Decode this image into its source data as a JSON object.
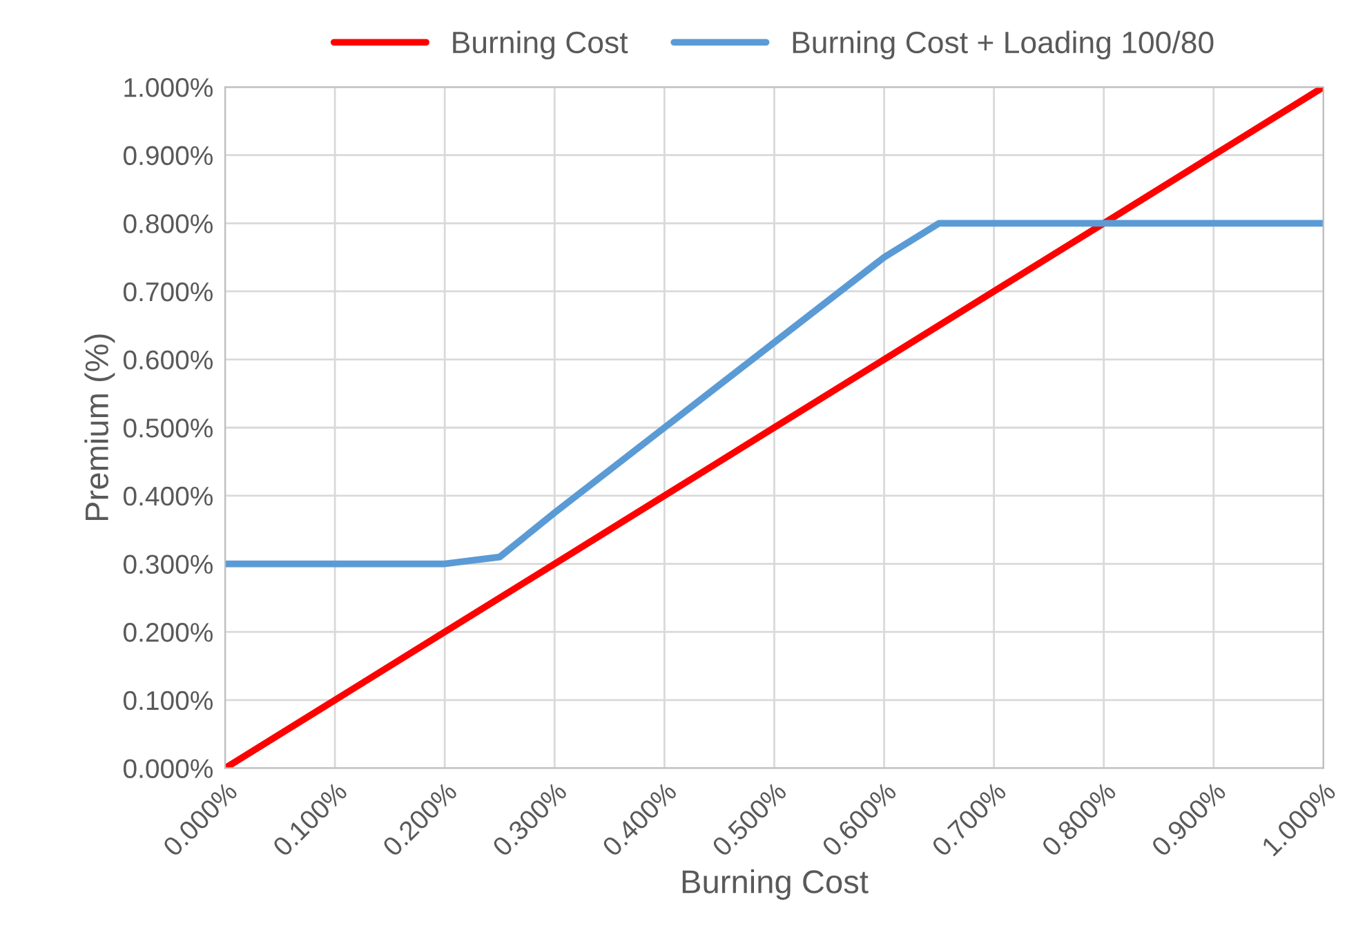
{
  "chart_data": {
    "type": "line",
    "xlabel": "Burning Cost",
    "ylabel": "Premium (%)",
    "series": [
      {
        "name": "Burning Cost",
        "color": "#ff0000",
        "x": [
          0,
          0.1,
          0.2,
          0.3,
          0.4,
          0.5,
          0.6,
          0.7,
          0.8,
          0.9,
          1.0
        ],
        "values": [
          0,
          0.1,
          0.2,
          0.3,
          0.4,
          0.5,
          0.6,
          0.7,
          0.8,
          0.9,
          1.0
        ]
      },
      {
        "name": "Burning Cost + Loading 100/80",
        "color": "#5b9bd5",
        "x": [
          0,
          0.1,
          0.2,
          0.25,
          0.3,
          0.4,
          0.5,
          0.6,
          0.65,
          0.7,
          0.8,
          0.9,
          1.0
        ],
        "values": [
          0.3,
          0.3,
          0.3,
          0.31,
          0.375,
          0.5,
          0.625,
          0.75,
          0.8,
          0.8,
          0.8,
          0.8,
          0.8
        ]
      }
    ],
    "xlim": [
      0,
      1.0
    ],
    "ylim": [
      0,
      1.0
    ],
    "xticks": [
      {
        "value": 0,
        "label": "0.000%"
      },
      {
        "value": 0.1,
        "label": "0.100%"
      },
      {
        "value": 0.2,
        "label": "0.200%"
      },
      {
        "value": 0.3,
        "label": "0.300%"
      },
      {
        "value": 0.4,
        "label": "0.400%"
      },
      {
        "value": 0.5,
        "label": "0.500%"
      },
      {
        "value": 0.6,
        "label": "0.600%"
      },
      {
        "value": 0.7,
        "label": "0.700%"
      },
      {
        "value": 0.8,
        "label": "0.800%"
      },
      {
        "value": 0.9,
        "label": "0.900%"
      },
      {
        "value": 1.0,
        "label": "1.000%"
      }
    ],
    "yticks": [
      {
        "value": 0,
        "label": "0.000%"
      },
      {
        "value": 0.1,
        "label": "0.100%"
      },
      {
        "value": 0.2,
        "label": "0.200%"
      },
      {
        "value": 0.3,
        "label": "0.300%"
      },
      {
        "value": 0.4,
        "label": "0.400%"
      },
      {
        "value": 0.5,
        "label": "0.500%"
      },
      {
        "value": 0.6,
        "label": "0.600%"
      },
      {
        "value": 0.7,
        "label": "0.700%"
      },
      {
        "value": 0.8,
        "label": "0.800%"
      },
      {
        "value": 0.9,
        "label": "0.900%"
      },
      {
        "value": 1.0,
        "label": "1.000%"
      }
    ],
    "grid": true,
    "legend": "top",
    "marker": "none",
    "line_style": "solid"
  }
}
